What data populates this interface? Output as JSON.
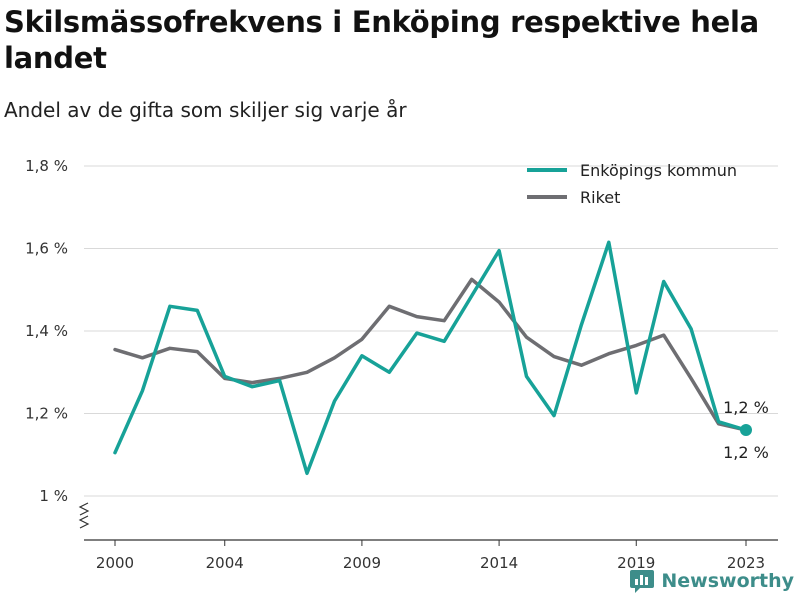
{
  "header": {
    "title": "Skilsmässofrekvens i Enköping respektive hela landet",
    "subtitle": "Andel av de gifta som skiljer sig varje år"
  },
  "brand": {
    "name": "Newsworthy",
    "icon": "newsworthy-logo-icon",
    "color": "#3d8d8a"
  },
  "chart_data": {
    "type": "line",
    "x": [
      2000,
      2001,
      2002,
      2003,
      2004,
      2005,
      2006,
      2007,
      2008,
      2009,
      2010,
      2011,
      2012,
      2013,
      2014,
      2015,
      2016,
      2017,
      2018,
      2019,
      2020,
      2021,
      2022,
      2023
    ],
    "series": [
      {
        "name": "Enköpings kommun",
        "color": "#17a298",
        "values": [
          1.105,
          1.255,
          1.46,
          1.45,
          1.29,
          1.265,
          1.28,
          1.055,
          1.23,
          1.34,
          1.3,
          1.395,
          1.375,
          1.485,
          1.595,
          1.29,
          1.195,
          1.415,
          1.615,
          1.25,
          1.52,
          1.405,
          1.18,
          1.16
        ]
      },
      {
        "name": "Riket",
        "color": "#6e6e72",
        "values": [
          1.355,
          1.335,
          1.358,
          1.35,
          1.285,
          1.275,
          1.285,
          1.3,
          1.335,
          1.38,
          1.46,
          1.435,
          1.425,
          1.525,
          1.47,
          1.385,
          1.338,
          1.317,
          1.345,
          1.365,
          1.39,
          1.285,
          1.175,
          1.16
        ]
      }
    ],
    "ylim": [
      1.0,
      1.8
    ],
    "y_ticks": [
      1.0,
      1.2,
      1.4,
      1.6,
      1.8
    ],
    "y_tick_labels": [
      "1 %",
      "1,2 %",
      "1,4 %",
      "1,6 %",
      "1,8 %"
    ],
    "x_ticks": [
      2000,
      2004,
      2009,
      2014,
      2019,
      2023
    ],
    "x_tick_labels": [
      "2000",
      "2004",
      "2009",
      "2014",
      "2019",
      "2023"
    ],
    "end_labels": [
      "1,2 %",
      "1,2 %"
    ],
    "grid": true,
    "legend": "top-right",
    "axis_break": true
  }
}
